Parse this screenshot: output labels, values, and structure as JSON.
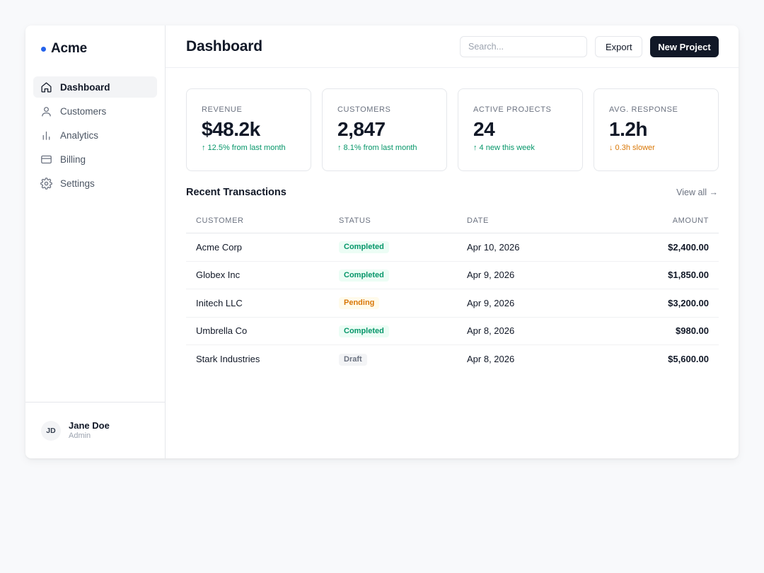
{
  "brand": {
    "name": "Acme",
    "accent": "#2563eb"
  },
  "sidebar": {
    "items": [
      {
        "label": "Dashboard",
        "icon": "home-icon",
        "active": true
      },
      {
        "label": "Customers",
        "icon": "user-icon",
        "active": false
      },
      {
        "label": "Analytics",
        "icon": "bar-chart-icon",
        "active": false
      },
      {
        "label": "Billing",
        "icon": "credit-card-icon",
        "active": false
      },
      {
        "label": "Settings",
        "icon": "gear-icon",
        "active": false
      }
    ],
    "user": {
      "initials": "JD",
      "name": "Jane Doe",
      "role": "Admin"
    }
  },
  "header": {
    "title": "Dashboard",
    "search_placeholder": "Search...",
    "export_label": "Export",
    "new_project_label": "New Project"
  },
  "stats": [
    {
      "label": "REVENUE",
      "value": "$48.2k",
      "delta": "↑ 12.5% from last month",
      "trend": "up"
    },
    {
      "label": "CUSTOMERS",
      "value": "2,847",
      "delta": "↑ 8.1% from last month",
      "trend": "up"
    },
    {
      "label": "ACTIVE PROJECTS",
      "value": "24",
      "delta": "↑ 4 new this week",
      "trend": "up"
    },
    {
      "label": "AVG. RESPONSE",
      "value": "1.2h",
      "delta": "↓ 0.3h slower",
      "trend": "down"
    }
  ],
  "transactions": {
    "title": "Recent Transactions",
    "view_all": "View all →",
    "columns": [
      "CUSTOMER",
      "STATUS",
      "DATE",
      "AMOUNT"
    ],
    "rows": [
      {
        "customer": "Acme Corp",
        "status": "Completed",
        "date": "Apr 10, 2026",
        "amount": "$2,400.00"
      },
      {
        "customer": "Globex Inc",
        "status": "Completed",
        "date": "Apr 9, 2026",
        "amount": "$1,850.00"
      },
      {
        "customer": "Initech LLC",
        "status": "Pending",
        "date": "Apr 9, 2026",
        "amount": "$3,200.00"
      },
      {
        "customer": "Umbrella Co",
        "status": "Completed",
        "date": "Apr 8, 2026",
        "amount": "$980.00"
      },
      {
        "customer": "Stark Industries",
        "status": "Draft",
        "date": "Apr 8, 2026",
        "amount": "$5,600.00"
      }
    ]
  },
  "colors": {
    "positive": "#059669",
    "warning": "#d97706",
    "primary_button": "#111827"
  }
}
